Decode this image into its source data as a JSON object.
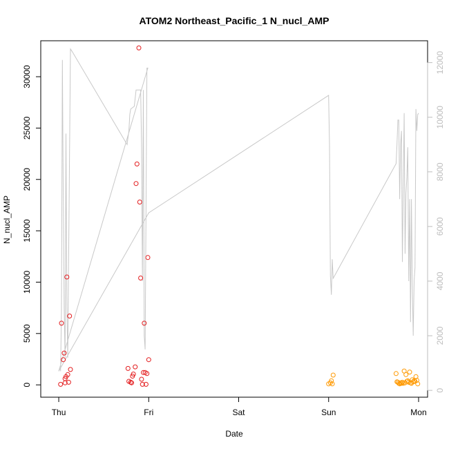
{
  "chart_data": {
    "type": "scatter",
    "title": "ATOM2 Northeast_Pacific_1 N_nucl_AMP",
    "xlabel": "Date",
    "ylabel": "N_nucl_AMP",
    "x_ticks": [
      "Thu",
      "Fri",
      "Sat",
      "Sun",
      "Mon"
    ],
    "xlim": [
      -0.2,
      4.1
    ],
    "ylim": [
      -1200,
      33500
    ],
    "y_ticks": [
      0,
      5000,
      10000,
      15000,
      20000,
      25000,
      30000
    ],
    "y2lim": [
      -250,
      12800
    ],
    "y2_ticks": [
      0,
      2000,
      4000,
      6000,
      8000,
      10000,
      12000
    ],
    "grid": false,
    "colors": {
      "series_red": "#e31a1c",
      "series_orange": "#ff9900",
      "line_gray": "#c8c8c8",
      "right_axis": "#bdbdbd"
    },
    "series": [
      {
        "color": "red",
        "points": [
          [
            0.02,
            50
          ],
          [
            0.03,
            6000
          ],
          [
            0.05,
            2450
          ],
          [
            0.06,
            3100
          ],
          [
            0.07,
            600
          ],
          [
            0.07,
            200
          ],
          [
            0.08,
            800
          ],
          [
            0.09,
            10500
          ],
          [
            0.1,
            1000
          ],
          [
            0.11,
            250
          ],
          [
            0.12,
            6700
          ],
          [
            0.13,
            1500
          ],
          [
            0.77,
            1600
          ],
          [
            0.78,
            350
          ],
          [
            0.8,
            250
          ],
          [
            0.81,
            200
          ],
          [
            0.82,
            850
          ],
          [
            0.83,
            1050
          ],
          [
            0.85,
            1750
          ],
          [
            0.86,
            19600
          ],
          [
            0.87,
            21500
          ],
          [
            0.89,
            32800
          ],
          [
            0.9,
            17800
          ],
          [
            0.91,
            10400
          ],
          [
            0.92,
            550
          ],
          [
            0.93,
            50
          ],
          [
            0.94,
            1200
          ],
          [
            0.95,
            6000
          ],
          [
            0.96,
            1200
          ],
          [
            0.97,
            50
          ],
          [
            0.98,
            1100
          ],
          [
            0.99,
            12400
          ],
          [
            1.0,
            2450
          ]
        ]
      },
      {
        "color": "orange",
        "points": [
          [
            3.0,
            100
          ],
          [
            3.02,
            200
          ],
          [
            3.03,
            400
          ],
          [
            3.04,
            100
          ],
          [
            3.05,
            950
          ],
          [
            3.75,
            1100
          ],
          [
            3.76,
            300
          ],
          [
            3.77,
            250
          ],
          [
            3.78,
            150
          ],
          [
            3.79,
            100
          ],
          [
            3.8,
            200
          ],
          [
            3.81,
            150
          ],
          [
            3.82,
            250
          ],
          [
            3.83,
            150
          ],
          [
            3.84,
            1350
          ],
          [
            3.85,
            200
          ],
          [
            3.86,
            1000
          ],
          [
            3.87,
            350
          ],
          [
            3.88,
            400
          ],
          [
            3.89,
            250
          ],
          [
            3.9,
            1250
          ],
          [
            3.91,
            200
          ],
          [
            3.92,
            150
          ],
          [
            3.93,
            500
          ],
          [
            3.94,
            300
          ],
          [
            3.95,
            400
          ],
          [
            3.96,
            350
          ],
          [
            3.97,
            800
          ],
          [
            3.98,
            450
          ],
          [
            3.99,
            100
          ]
        ]
      }
    ],
    "line_series": {
      "axis": "right",
      "color": "gray",
      "points": [
        [
          0.02,
          700
        ],
        [
          0.03,
          3000
        ],
        [
          0.04,
          12100
        ],
        [
          0.05,
          7000
        ],
        [
          0.06,
          3000
        ],
        [
          0.07,
          1200
        ],
        [
          0.08,
          9400
        ],
        [
          0.09,
          3000
        ],
        [
          0.1,
          1200
        ],
        [
          0.13,
          12500
        ],
        [
          0.15,
          12400
        ],
        [
          0.76,
          9000
        ],
        [
          0.78,
          9500
        ],
        [
          0.79,
          10100
        ],
        [
          0.8,
          10300
        ],
        [
          0.82,
          10350
        ],
        [
          0.84,
          10400
        ],
        [
          0.86,
          11000
        ],
        [
          0.88,
          11000
        ],
        [
          0.9,
          11000
        ],
        [
          0.91,
          11000
        ],
        [
          0.92,
          9000
        ],
        [
          0.93,
          4000
        ],
        [
          0.94,
          11000
        ],
        [
          0.95,
          2000
        ],
        [
          0.96,
          1500
        ],
        [
          0.98,
          11800
        ],
        [
          0.99,
          11800
        ],
        [
          0.0,
          700
        ],
        [
          1.0,
          6500
        ],
        [
          3.0,
          10800
        ],
        [
          3.01,
          9000
        ],
        [
          3.02,
          4200
        ],
        [
          3.03,
          3500
        ],
        [
          3.04,
          4800
        ],
        [
          3.05,
          4100
        ],
        [
          3.75,
          8300
        ],
        [
          3.76,
          9000
        ],
        [
          3.77,
          9900
        ],
        [
          3.78,
          9900
        ],
        [
          3.79,
          7000
        ],
        [
          3.8,
          9000
        ],
        [
          3.81,
          9500
        ],
        [
          3.82,
          4700
        ],
        [
          3.83,
          7500
        ],
        [
          3.84,
          10150
        ],
        [
          3.85,
          5000
        ],
        [
          3.86,
          7200
        ],
        [
          3.87,
          7800
        ],
        [
          3.88,
          8900
        ],
        [
          3.89,
          4000
        ],
        [
          3.9,
          7000
        ],
        [
          3.91,
          2500
        ],
        [
          3.92,
          7000
        ],
        [
          3.93,
          3800
        ],
        [
          3.94,
          2000
        ],
        [
          3.95,
          4000
        ],
        [
          3.96,
          4500
        ],
        [
          3.97,
          10300
        ],
        [
          3.98,
          9500
        ],
        [
          3.99,
          10100
        ],
        [
          4.0,
          10150
        ]
      ]
    }
  }
}
